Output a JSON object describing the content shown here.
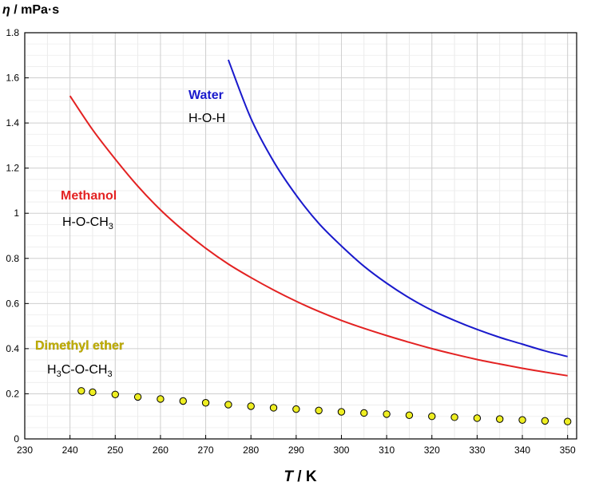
{
  "chart_data": {
    "type": "line",
    "title": "",
    "xlabel_symbol": "T",
    "xlabel_unit": " / K",
    "ylabel_symbol": "η",
    "ylabel_unit": " / mPa·s",
    "xlim": [
      230,
      352
    ],
    "ylim": [
      0,
      1.8
    ],
    "xticks": [
      230,
      240,
      250,
      260,
      270,
      280,
      290,
      300,
      310,
      320,
      330,
      340,
      350
    ],
    "yticks": [
      0,
      0.2,
      0.4,
      0.6,
      0.8,
      1,
      1.2,
      1.4,
      1.6,
      1.8
    ],
    "ytick_labels": [
      "0",
      "0.2",
      "0.4",
      "0.6",
      "0.8",
      "1",
      "1.2",
      "1.4",
      "1.6",
      "1.8"
    ],
    "grid": true,
    "series": [
      {
        "name": "Water",
        "formula": "H-O-H",
        "style": "line",
        "color": "#1a1acc",
        "x": [
          275,
          280,
          285,
          290,
          295,
          300,
          305,
          310,
          315,
          320,
          325,
          330,
          335,
          340,
          345,
          350
        ],
        "y": [
          1.68,
          1.42,
          1.23,
          1.08,
          0.955,
          0.855,
          0.765,
          0.69,
          0.625,
          0.57,
          0.525,
          0.485,
          0.45,
          0.42,
          0.39,
          0.365
        ]
      },
      {
        "name": "Methanol",
        "formula_main": "H-O-CH",
        "formula_sub": "3",
        "style": "line",
        "color": "#e32222",
        "x": [
          240,
          245,
          250,
          255,
          260,
          265,
          270,
          275,
          280,
          285,
          290,
          295,
          300,
          305,
          310,
          315,
          320,
          325,
          330,
          335,
          340,
          345,
          350
        ],
        "y": [
          1.52,
          1.37,
          1.24,
          1.12,
          1.015,
          0.925,
          0.845,
          0.775,
          0.715,
          0.66,
          0.61,
          0.565,
          0.525,
          0.49,
          0.458,
          0.428,
          0.4,
          0.375,
          0.352,
          0.332,
          0.313,
          0.296,
          0.28
        ]
      },
      {
        "name": "Dimethyl ether",
        "formula_parts": [
          "H",
          "3",
          "C-O-CH",
          "3"
        ],
        "style": "markers",
        "color": "#eeee22",
        "label_color": "#c2b000",
        "x": [
          242.5,
          245,
          250,
          255,
          260,
          265,
          270,
          275,
          280,
          285,
          290,
          295,
          300,
          305,
          310,
          315,
          320,
          325,
          330,
          335,
          340,
          345,
          350
        ],
        "y": [
          0.213,
          0.207,
          0.197,
          0.186,
          0.177,
          0.168,
          0.16,
          0.152,
          0.145,
          0.138,
          0.132,
          0.126,
          0.12,
          0.115,
          0.11,
          0.105,
          0.1,
          0.096,
          0.092,
          0.088,
          0.084,
          0.08,
          0.077
        ]
      }
    ]
  }
}
